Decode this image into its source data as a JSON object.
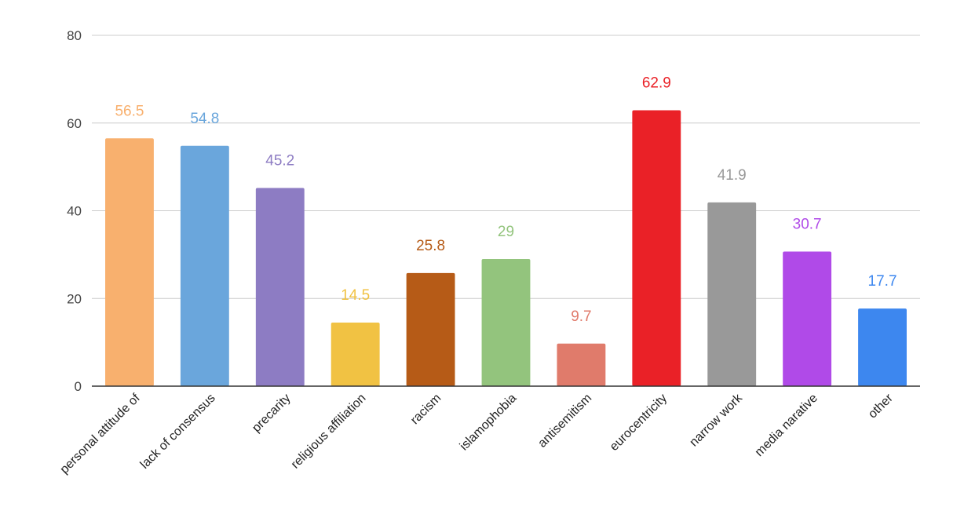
{
  "chart_data": {
    "type": "bar",
    "title": "",
    "xlabel": "",
    "ylabel": "",
    "ylim": [
      0,
      80
    ],
    "yticks": [
      0,
      20,
      40,
      60,
      80
    ],
    "grid": true,
    "legend": "none",
    "categories": [
      "personal attitude of",
      "lack of consensus",
      "precarity",
      "religious affiliation",
      "racism",
      "islamophobia",
      "antisemitism",
      "eurocentricity",
      "narrow work",
      "media narative",
      "other"
    ],
    "values": [
      56.5,
      54.8,
      45.2,
      14.5,
      25.8,
      29,
      9.7,
      62.9,
      41.9,
      30.7,
      17.7
    ],
    "data_labels": [
      "56.5",
      "54.8",
      "45.2",
      "14.5",
      "25.8",
      "29",
      "9.7",
      "62.9",
      "41.9",
      "30.7",
      "17.7"
    ],
    "colors": [
      "#f8b06e",
      "#6aa6dc",
      "#8d7cc3",
      "#f1c243",
      "#b65b17",
      "#93c47d",
      "#e07b6b",
      "#ea2127",
      "#999999",
      "#b04ae8",
      "#3d87ef"
    ]
  }
}
